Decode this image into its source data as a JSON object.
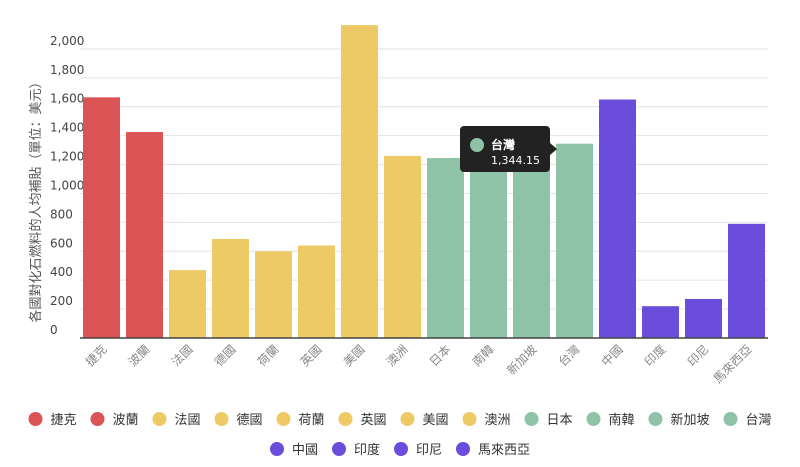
{
  "colors": {
    "europe": "#dc5356",
    "west": "#eeca67",
    "asia_green": "#8ec3a7",
    "asia_purple": "#6b4ddb",
    "tooltip_bg": "#222222"
  },
  "tooltip": {
    "category": "台灣",
    "value_text": "1,344.15",
    "color": "#8ec3a7"
  },
  "chart_data": {
    "type": "bar",
    "ylabel": "各國對化石燃料的人均補貼（單位：美元）",
    "ylim": [
      0,
      2200
    ],
    "yticks": [
      0,
      200,
      400,
      600,
      800,
      1000,
      1200,
      1400,
      1600,
      1800,
      2000
    ],
    "ytick_labels": [
      "0",
      "200",
      "400",
      "600",
      "800",
      "1,000",
      "1,200",
      "1,400",
      "1,600",
      "1,800",
      "2,000"
    ],
    "grid": true,
    "legend_position": "bottom",
    "categories": [
      "捷克",
      "波蘭",
      "法國",
      "德國",
      "荷蘭",
      "英國",
      "美國",
      "澳洲",
      "日本",
      "南韓",
      "新加坡",
      "台灣",
      "中國",
      "印度",
      "印尼",
      "馬來西亞"
    ],
    "values": [
      1665,
      1425,
      470,
      685,
      600,
      640,
      2165,
      1260,
      1245,
      1250,
      1250,
      1344.15,
      1650,
      220,
      270,
      790
    ],
    "colors": [
      "#dc5356",
      "#dc5356",
      "#eeca67",
      "#eeca67",
      "#eeca67",
      "#eeca67",
      "#eeca67",
      "#eeca67",
      "#8ec3a7",
      "#8ec3a7",
      "#8ec3a7",
      "#8ec3a7",
      "#6b4ddb",
      "#6b4ddb",
      "#6b4ddb",
      "#6b4ddb"
    ]
  }
}
